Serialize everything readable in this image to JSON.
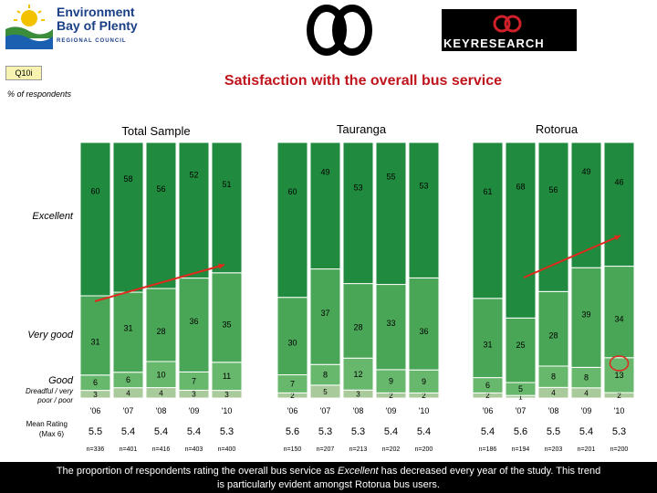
{
  "header": {
    "org_name_line1": "Environment",
    "org_name_line2": "Bay of Plenty",
    "org_sub": "REGIONAL COUNCIL",
    "brand": "KEYRESEARCH",
    "question_id": "Q10i",
    "pct_label": "% of respondents",
    "title": "Satisfaction with the overall bus service"
  },
  "colors": {
    "excellent": "#208a3e",
    "very_good": "#4aa657",
    "good": "#67b86c",
    "dreadful": "#a9ca9a",
    "trend_arrow": "#e0281c",
    "highlight_circle": "#e0281c"
  },
  "chart_data": {
    "type": "bar",
    "stacked": true,
    "categories": [
      "Excellent",
      "Very good",
      "Good",
      "Dreadful / very poor / poor"
    ],
    "category_labels": [
      "Excellent",
      "Very good",
      "Good",
      "Dreadful / very poor / poor"
    ],
    "mean_label": "Mean Rating (Max 6)",
    "panels": [
      {
        "name": "Total Sample",
        "years": [
          "'06",
          "'07",
          "'08",
          "'09",
          "'10"
        ],
        "excellent": [
          60,
          58,
          56,
          52,
          51
        ],
        "very_good": [
          31,
          31,
          28,
          36,
          35
        ],
        "good": [
          6,
          6,
          10,
          7,
          11
        ],
        "poor": [
          3,
          4,
          4,
          3,
          3
        ],
        "good_extra": [
          "",
          "",
          "2",
          "",
          ""
        ],
        "poor_extra": [
          "",
          "1",
          "",
          "",
          "1"
        ],
        "mean": [
          "5.5",
          "5.4",
          "5.4",
          "5.4",
          "5.3"
        ],
        "n": [
          "n=336",
          "n=401",
          "n=416",
          "n=403",
          "n=400"
        ]
      },
      {
        "name": "Tauranga",
        "years": [
          "'06",
          "'07",
          "'08",
          "'09",
          "'10"
        ],
        "excellent": [
          60,
          49,
          53,
          55,
          53
        ],
        "very_good": [
          30,
          37,
          28,
          33,
          36
        ],
        "good": [
          7,
          8,
          12,
          9,
          9
        ],
        "poor": [
          2,
          5,
          3,
          2,
          2
        ],
        "good_extra": [
          "",
          "",
          "4",
          "",
          ""
        ],
        "poor_extra": [
          "",
          "",
          "",
          "",
          ""
        ],
        "mean": [
          "5.6",
          "5.3",
          "5.3",
          "5.4",
          "5.4"
        ],
        "n": [
          "n=150",
          "n=207",
          "n=213",
          "n=202",
          "n=200"
        ]
      },
      {
        "name": "Rotorua",
        "years": [
          "'06",
          "'07",
          "'08",
          "'09",
          "'10"
        ],
        "excellent": [
          61,
          68,
          56,
          49,
          46
        ],
        "very_good": [
          31,
          25,
          28,
          39,
          34
        ],
        "good": [
          6,
          5,
          8,
          8,
          13
        ],
        "poor": [
          2,
          1,
          4,
          4,
          2
        ],
        "good_extra": [
          "",
          "",
          "3",
          "1",
          "2"
        ],
        "poor_extra": [
          "",
          "1",
          "",
          "",
          ""
        ],
        "mean": [
          "5.4",
          "5.6",
          "5.5",
          "5.4",
          "5.3"
        ],
        "n": [
          "n=186",
          "n=194",
          "n=203",
          "n=201",
          "n=200"
        ]
      }
    ]
  },
  "footer": {
    "line1_a": "The proportion of respondents rating the overall bus service as ",
    "line1_em": "Excellent",
    "line1_b": " has decreased every year of the study.  This trend",
    "line2": "is particularly evident amongst Rotorua bus users."
  }
}
